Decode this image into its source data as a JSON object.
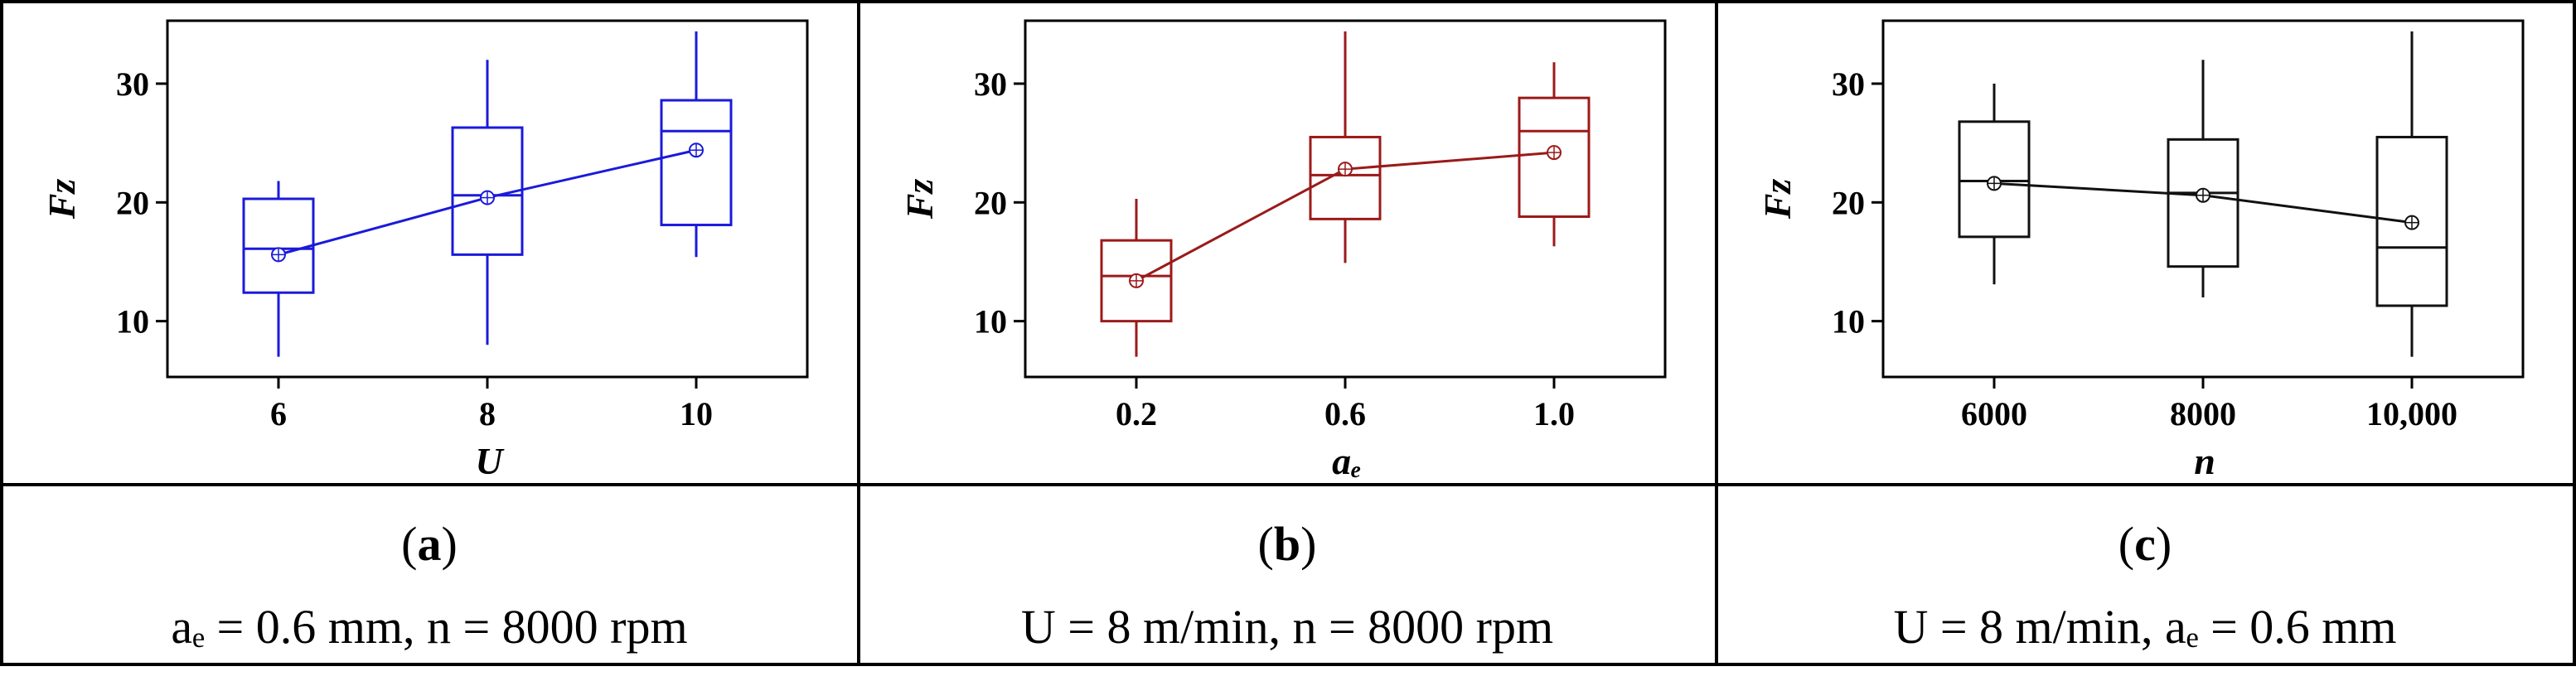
{
  "chart_data": [
    {
      "type": "box",
      "panel_label": "a",
      "condition": "aₑ = 0.6 mm, n = 8000 rpm",
      "xlabel": "U",
      "ylabel": "Fz",
      "categories": [
        "6",
        "8",
        "10"
      ],
      "yticks": [
        10,
        20,
        30
      ],
      "ylim": [
        5.3,
        35.3
      ],
      "color": "#1a1adb",
      "boxes": [
        {
          "min": 7,
          "q1": 12.4,
          "median": 16.1,
          "q3": 20.3,
          "max": 21.8,
          "mean": 15.6
        },
        {
          "min": 8,
          "q1": 15.6,
          "median": 20.6,
          "q3": 26.3,
          "max": 32.0,
          "mean": 20.4
        },
        {
          "min": 15.4,
          "q1": 18.1,
          "median": 26.0,
          "q3": 28.6,
          "max": 34.4,
          "mean": 24.4
        }
      ]
    },
    {
      "type": "box",
      "panel_label": "b",
      "condition": "U = 8 m/min, n = 8000 rpm",
      "xlabel": "aₑ",
      "ylabel": "Fz",
      "categories": [
        "0.2",
        "0.6",
        "1.0"
      ],
      "yticks": [
        10,
        20,
        30
      ],
      "ylim": [
        5.3,
        35.3
      ],
      "color": "#9b1a1a",
      "boxes": [
        {
          "min": 7,
          "q1": 10.0,
          "median": 13.8,
          "q3": 16.8,
          "max": 20.3,
          "mean": 13.4
        },
        {
          "min": 14.9,
          "q1": 18.6,
          "median": 22.3,
          "q3": 25.5,
          "max": 34.4,
          "mean": 22.8
        },
        {
          "min": 16.3,
          "q1": 18.8,
          "median": 26.0,
          "q3": 28.8,
          "max": 31.8,
          "mean": 24.2
        }
      ]
    },
    {
      "type": "box",
      "panel_label": "c",
      "condition": "U = 8 m/min, aₑ = 0.6 mm",
      "xlabel": "n",
      "ylabel": "Fz",
      "categories": [
        "6000",
        "8000",
        "10,000"
      ],
      "yticks": [
        10,
        20,
        30
      ],
      "ylim": [
        5.3,
        35.3
      ],
      "color": "#111111",
      "boxes": [
        {
          "min": 13.1,
          "q1": 17.1,
          "median": 21.8,
          "q3": 26.8,
          "max": 30.0,
          "mean": 21.6
        },
        {
          "min": 12.0,
          "q1": 14.6,
          "median": 20.8,
          "q3": 25.3,
          "max": 32.0,
          "mean": 20.6
        },
        {
          "min": 7,
          "q1": 11.3,
          "median": 16.2,
          "q3": 25.5,
          "max": 34.4,
          "mean": 18.3
        }
      ]
    }
  ]
}
